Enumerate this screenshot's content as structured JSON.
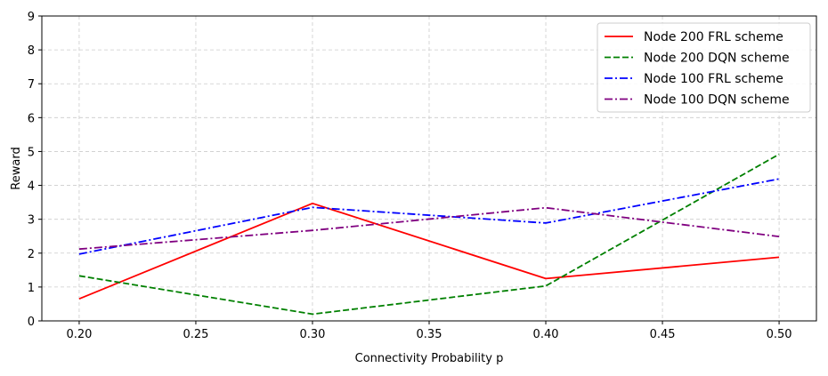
{
  "chart_data": {
    "type": "line",
    "xlabel": "Connectivity Probability p",
    "ylabel": "Reward",
    "xlim": [
      0.184,
      0.516
    ],
    "ylim": [
      0,
      9
    ],
    "xticks": [
      "0.20",
      "0.25",
      "0.30",
      "0.35",
      "0.40",
      "0.45",
      "0.50"
    ],
    "xtick_values": [
      0.2,
      0.25,
      0.3,
      0.35,
      0.4,
      0.45,
      0.5
    ],
    "yticks": [
      "0",
      "1",
      "2",
      "3",
      "4",
      "5",
      "6",
      "7",
      "8",
      "9"
    ],
    "ytick_values": [
      0,
      1,
      2,
      3,
      4,
      5,
      6,
      7,
      8,
      9
    ],
    "grid": true,
    "legend_position": "top-right",
    "x": [
      0.2,
      0.3,
      0.4,
      0.5
    ],
    "series": [
      {
        "name": "Node 200 FRL scheme",
        "values": [
          0.65,
          3.47,
          1.25,
          1.88
        ],
        "color": "#ff0000",
        "dash": "solid"
      },
      {
        "name": "Node 200 DQN scheme",
        "values": [
          1.33,
          0.2,
          1.03,
          4.92
        ],
        "color": "#008000",
        "dash": "dashed"
      },
      {
        "name": "Node 100 FRL scheme",
        "values": [
          1.97,
          3.35,
          2.89,
          4.19
        ],
        "color": "#0000ff",
        "dash": "dashdot"
      },
      {
        "name": "Node 100 DQN scheme",
        "values": [
          2.12,
          2.67,
          3.34,
          2.49
        ],
        "color": "#800080",
        "dash": "dashdot"
      }
    ]
  }
}
